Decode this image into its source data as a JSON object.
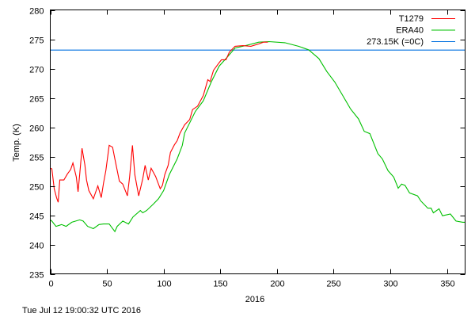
{
  "chart_data": {
    "type": "line",
    "title": "",
    "xlabel": "2016",
    "ylabel": "Temp. (K)",
    "xlim": [
      0,
      366
    ],
    "ylim": [
      235,
      280
    ],
    "xticks": [
      0,
      50,
      100,
      150,
      200,
      250,
      300,
      350
    ],
    "yticks": [
      235,
      240,
      245,
      250,
      255,
      260,
      265,
      270,
      275,
      280
    ],
    "grid": false,
    "legend_position": "top-right",
    "timestamp": "Tue Jul 12 19:00:32 UTC 2016",
    "series": [
      {
        "name": "T1279",
        "color": "#ff0000",
        "points": [
          [
            0,
            253
          ],
          [
            1.4,
            252.9
          ],
          [
            3.5,
            249.5
          ],
          [
            5.5,
            248
          ],
          [
            7,
            247.2
          ],
          [
            8.4,
            251
          ],
          [
            12,
            251
          ],
          [
            15,
            252
          ],
          [
            18,
            252.8
          ],
          [
            20,
            253.9
          ],
          [
            23,
            251.5
          ],
          [
            24.5,
            249
          ],
          [
            26,
            252
          ],
          [
            28,
            256.4
          ],
          [
            30.5,
            253.6
          ],
          [
            32,
            251
          ],
          [
            34,
            249.2
          ],
          [
            38,
            247.8
          ],
          [
            42,
            250
          ],
          [
            45,
            248
          ],
          [
            47,
            250.5
          ],
          [
            49,
            252.6
          ],
          [
            52,
            256.9
          ],
          [
            55,
            256.6
          ],
          [
            57,
            254.6
          ],
          [
            61,
            250.8
          ],
          [
            64,
            250.3
          ],
          [
            68,
            248.3
          ],
          [
            70,
            251.5
          ],
          [
            72.5,
            256.9
          ],
          [
            74.6,
            251.9
          ],
          [
            78,
            248.3
          ],
          [
            81.6,
            251.2
          ],
          [
            83.7,
            253.5
          ],
          [
            86.5,
            251
          ],
          [
            89,
            253
          ],
          [
            91,
            252.3
          ],
          [
            93,
            251.6
          ],
          [
            97,
            249.5
          ],
          [
            99,
            250.1
          ],
          [
            101,
            251.9
          ],
          [
            104,
            253.5
          ],
          [
            106,
            255.7
          ],
          [
            109.5,
            257
          ],
          [
            112,
            257.7
          ],
          [
            114.5,
            259
          ],
          [
            118.5,
            260.4
          ],
          [
            123,
            261.3
          ],
          [
            125.5,
            263
          ],
          [
            130,
            263.6
          ],
          [
            135,
            265.4
          ],
          [
            139,
            268.1
          ],
          [
            141,
            267.8
          ],
          [
            144,
            269.7
          ],
          [
            149,
            271
          ],
          [
            151,
            271.5
          ],
          [
            155,
            271.5
          ],
          [
            158,
            272.8
          ],
          [
            163,
            273.8
          ],
          [
            170,
            273.9
          ],
          [
            177,
            273.8
          ],
          [
            184,
            274.2
          ],
          [
            188,
            274.5
          ],
          [
            192,
            274.5
          ]
        ]
      },
      {
        "name": "ERA40",
        "color": "#00c000",
        "points": [
          [
            0,
            244.2
          ],
          [
            1.4,
            244
          ],
          [
            5,
            243.1
          ],
          [
            10,
            243.4
          ],
          [
            14,
            243.1
          ],
          [
            19,
            243.8
          ],
          [
            26,
            244.2
          ],
          [
            29,
            244
          ],
          [
            33,
            243.1
          ],
          [
            38,
            242.7
          ],
          [
            43,
            243.4
          ],
          [
            47,
            243.5
          ],
          [
            52,
            243.5
          ],
          [
            57,
            242.2
          ],
          [
            59,
            243.1
          ],
          [
            64,
            244
          ],
          [
            69,
            243.5
          ],
          [
            73,
            244.7
          ],
          [
            79.5,
            245.8
          ],
          [
            81.6,
            245.4
          ],
          [
            85,
            245.8
          ],
          [
            91,
            246.9
          ],
          [
            95.5,
            247.8
          ],
          [
            100,
            249.2
          ],
          [
            105,
            251.9
          ],
          [
            112,
            254.6
          ],
          [
            116.5,
            256.9
          ],
          [
            118.5,
            259
          ],
          [
            128,
            262.7
          ],
          [
            135,
            264.5
          ],
          [
            142,
            267.7
          ],
          [
            149,
            270.4
          ],
          [
            156,
            271.9
          ],
          [
            163,
            273.5
          ],
          [
            172,
            273.9
          ],
          [
            184,
            274.5
          ],
          [
            193,
            274.6
          ],
          [
            207,
            274.4
          ],
          [
            219,
            273.8
          ],
          [
            228,
            273.2
          ],
          [
            237,
            271.7
          ],
          [
            244,
            269.5
          ],
          [
            251,
            267.7
          ],
          [
            258,
            265.4
          ],
          [
            265,
            263.1
          ],
          [
            272,
            261.4
          ],
          [
            277,
            259.3
          ],
          [
            282,
            258.9
          ],
          [
            289,
            255.5
          ],
          [
            293,
            254.6
          ],
          [
            298,
            252.6
          ],
          [
            303,
            251.5
          ],
          [
            307,
            249.6
          ],
          [
            310,
            250.3
          ],
          [
            313,
            250.1
          ],
          [
            317,
            248.8
          ],
          [
            324,
            248.3
          ],
          [
            327,
            247.4
          ],
          [
            333,
            246.2
          ],
          [
            336,
            246.2
          ],
          [
            338,
            245.4
          ],
          [
            343,
            246.1
          ],
          [
            346,
            244.9
          ],
          [
            353,
            245.2
          ],
          [
            358,
            244
          ],
          [
            364,
            243.8
          ],
          [
            366,
            243.8
          ]
        ]
      },
      {
        "name": "273.15K (=0C)",
        "color": "#0070e0",
        "points": [
          [
            0,
            273.15
          ],
          [
            366,
            273.15
          ]
        ]
      }
    ]
  }
}
